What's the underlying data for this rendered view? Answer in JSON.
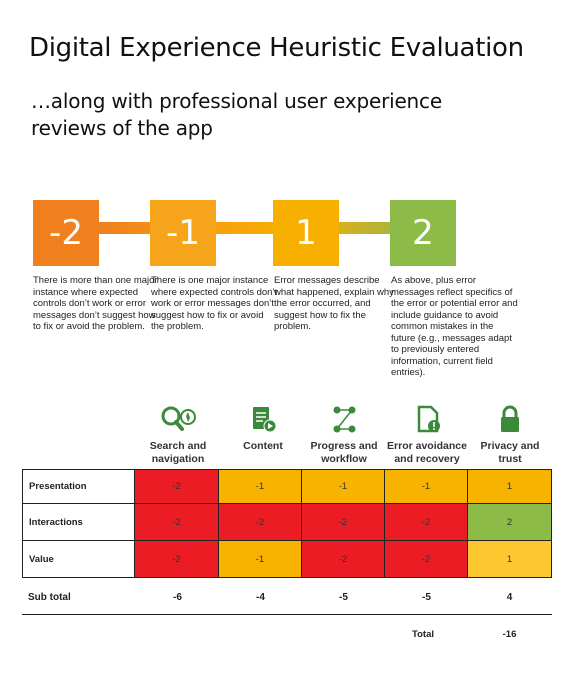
{
  "header": {
    "title": "Digital Experience Heuristic Evaluation",
    "subtitle": "…along with professional user experience reviews of the app"
  },
  "scale": [
    {
      "value": "-2",
      "color": "#f07f1e",
      "description": "There is more than one major instance where expected controls don’t work or error messages don’t suggest how to fix or avoid the problem."
    },
    {
      "value": "-1",
      "color": "#f6a51a",
      "description": "There is one major instance where expected controls don’t work or error messages don’t suggest how to fix or avoid the problem."
    },
    {
      "value": "1",
      "color": "#f7b000",
      "description": "Error messages describe what happened, explain why the error occurred, and suggest how to fix the problem."
    },
    {
      "value": "2",
      "color": "#8dbb48",
      "description": "As above, plus error messages reflect specifics of the error or potential error and include guidance to avoid common mistakes in the future (e.g., messages adapt to previously entered information, current field entries)."
    }
  ],
  "categories": [
    {
      "label": "Search and navigation",
      "icon": "search-navigation-icon"
    },
    {
      "label": "Content",
      "icon": "content-icon"
    },
    {
      "label": "Progress and workflow",
      "icon": "workflow-icon"
    },
    {
      "label": "Error avoidance and recovery",
      "icon": "error-document-icon"
    },
    {
      "label": "Privacy and trust",
      "icon": "lock-icon"
    }
  ],
  "colors": {
    "red": "#ec1c24",
    "orange": "#f8b300",
    "yellow": "#fdc72f",
    "green": "#8dbb48",
    "icon": "#3a8a3a"
  },
  "rows": [
    {
      "label": "Presentation",
      "values": [
        "-2",
        "-1",
        "-1",
        "-1",
        "1"
      ]
    },
    {
      "label": "Interactions",
      "values": [
        "-2",
        "-2",
        "-2",
        "-2",
        "2"
      ]
    },
    {
      "label": "Value",
      "values": [
        "-2",
        "-1",
        "-2",
        "-2",
        "1"
      ]
    }
  ],
  "subtotal": {
    "label": "Sub total",
    "values": [
      "-6",
      "-4",
      "-5",
      "-5",
      "4"
    ]
  },
  "total": {
    "label": "Total",
    "value": "-16"
  }
}
